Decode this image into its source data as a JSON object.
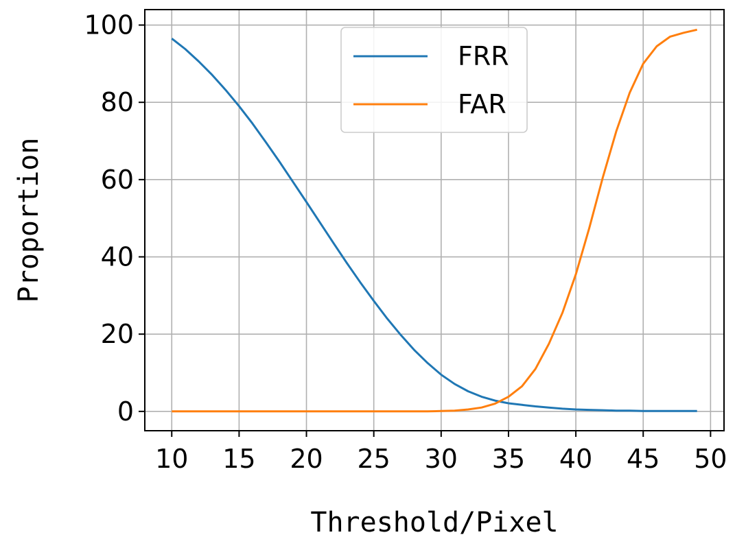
{
  "chart_data": {
    "type": "line",
    "title": "",
    "xlabel": "Threshold/Pixel",
    "ylabel": "Proportion",
    "xlim": [
      8,
      51
    ],
    "ylim": [
      -5,
      104
    ],
    "xticks": [
      "10",
      "15",
      "20",
      "25",
      "30",
      "35",
      "40",
      "45",
      "50"
    ],
    "yticks": [
      "0",
      "20",
      "40",
      "60",
      "80",
      "100"
    ],
    "grid": true,
    "legend_position": "top-center",
    "x": [
      10,
      11,
      12,
      13,
      14,
      15,
      16,
      17,
      18,
      19,
      20,
      21,
      22,
      23,
      24,
      25,
      26,
      27,
      28,
      29,
      30,
      31,
      32,
      33,
      34,
      35,
      36,
      37,
      38,
      39,
      40,
      41,
      42,
      43,
      44,
      45,
      46,
      47,
      48,
      49
    ],
    "series": [
      {
        "name": "FRR",
        "color": "#1f77b4",
        "values": [
          96.5,
          93.8,
          90.6,
          87.1,
          83.2,
          79.0,
          74.5,
          69.6,
          64.6,
          59.4,
          54.2,
          48.9,
          43.6,
          38.4,
          33.4,
          28.6,
          24.0,
          19.8,
          15.9,
          12.5,
          9.5,
          7.1,
          5.2,
          3.8,
          2.8,
          2.1,
          1.7,
          1.3,
          1.0,
          0.7,
          0.5,
          0.4,
          0.3,
          0.2,
          0.2,
          0.1,
          0.1,
          0.1,
          0.1,
          0.1
        ]
      },
      {
        "name": "FAR",
        "color": "#ff7f0e",
        "values": [
          0,
          0,
          0,
          0,
          0,
          0,
          0,
          0,
          0,
          0,
          0,
          0,
          0,
          0,
          0,
          0,
          0,
          0,
          0,
          0,
          0.1,
          0.2,
          0.5,
          1.0,
          2.0,
          3.8,
          6.5,
          11.0,
          17.5,
          25.5,
          35.5,
          47.5,
          60.5,
          72.5,
          82.5,
          90.0,
          94.5,
          97.0,
          98.0,
          98.8
        ]
      }
    ]
  }
}
